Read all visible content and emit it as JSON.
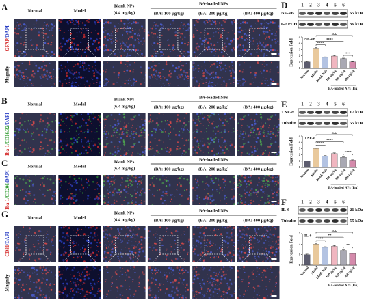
{
  "image_columns": {
    "normal": "Normal",
    "model": "Model",
    "blank": "Blank NPs",
    "blank_dose": "(6.4 mg/kg)",
    "ba_group": "BA-loaded NPs",
    "ba_doses": [
      "(BA: 100 μg/kg)",
      "(BA: 200 μg/kg)",
      "(BA: 400 μg/kg)"
    ]
  },
  "image_panels": [
    {
      "letter": "A",
      "stain": [
        {
          "text": "GFAP",
          "color": "#d42a2a"
        },
        {
          "text": "/DAPI",
          "color": "#2a3fc4"
        }
      ],
      "magnify": "Magnify"
    },
    {
      "letter": "B",
      "stain": [
        {
          "text": "Iba-1",
          "color": "#d42a2a"
        },
        {
          "text": "/CD16/32",
          "color": "#2f9a2f"
        },
        {
          "text": "/DAPI",
          "color": "#2a3fc4"
        }
      ]
    },
    {
      "letter": "C",
      "stain": [
        {
          "text": "Iba-1",
          "color": "#d42a2a"
        },
        {
          "text": "/CD206",
          "color": "#2f9a2f"
        },
        {
          "text": "/DAPI",
          "color": "#2a3fc4"
        }
      ]
    },
    {
      "letter": "G",
      "stain": [
        {
          "text": "CD31",
          "color": "#d42a2a"
        },
        {
          "text": "/DAPI",
          "color": "#2a3fc4"
        }
      ],
      "magnify": "Magnify"
    }
  ],
  "blot_panels": [
    {
      "letter": "D",
      "lanes": [
        1,
        2,
        3,
        4,
        5,
        6
      ],
      "blots": [
        {
          "protein": "NF-κB",
          "size": "65 kDa"
        },
        {
          "protein": "GAPDH",
          "size": "36 kDa"
        }
      ],
      "chart_data": {
        "type": "bar",
        "title": "NF-κB",
        "y_label": "Expression Fold",
        "categories": [
          "Normal",
          "Model",
          "Blank NPs",
          "100 μg/kg",
          "200 μg/kg",
          "400 μg/kg"
        ],
        "group_label": "BA-loaded NPs (BA)",
        "values": [
          1.0,
          3.2,
          1.75,
          1.95,
          1.55,
          1.0
        ],
        "errors": [
          0.08,
          0.12,
          0.08,
          0.1,
          0.08,
          0.06
        ],
        "colors": [
          "#5c5c6e",
          "#e9c99c",
          "#b3c3e2",
          "#f0b6c0",
          "#a9a9b3",
          "#d48aab"
        ],
        "ylim": [
          0,
          5
        ],
        "yticks": [
          0,
          1,
          2,
          3,
          4,
          5
        ],
        "significance": [
          "n.s.",
          "****",
          "****",
          "***"
        ]
      }
    },
    {
      "letter": "E",
      "lanes": [
        1,
        2,
        3,
        4,
        5,
        6
      ],
      "blots": [
        {
          "protein": "TNF-α",
          "size": "17 kDa"
        },
        {
          "protein": "Tubulin",
          "size": "55 kDa"
        }
      ],
      "chart_data": {
        "type": "bar",
        "title": "TNF-α",
        "y_label": "Expression Fold",
        "categories": [
          "Normal",
          "Model",
          "Blank NPs",
          "100 μg/kg",
          "200 μg/kg",
          "400 μg/kg"
        ],
        "group_label": "BA-loaded NPs (BA)",
        "values": [
          1.0,
          3.0,
          1.8,
          2.2,
          1.6,
          1.15
        ],
        "errors": [
          0.06,
          0.1,
          0.08,
          0.1,
          0.08,
          0.06
        ],
        "colors": [
          "#5c5c6e",
          "#e9c99c",
          "#b3c3e2",
          "#f0b6c0",
          "#a9a9b3",
          "#d48aab"
        ],
        "ylim": [
          0,
          5
        ],
        "yticks": [
          0,
          1,
          2,
          3,
          4,
          5
        ],
        "significance": [
          "n.s.",
          "****",
          "****",
          "****"
        ]
      }
    },
    {
      "letter": "F",
      "lanes": [
        1,
        2,
        3,
        4,
        5,
        6
      ],
      "blots": [
        {
          "protein": "IL-6",
          "size": "21 kDa"
        },
        {
          "protein": "Tubulin",
          "size": "55 kDa"
        }
      ],
      "chart_data": {
        "type": "bar",
        "title": "IL-6",
        "y_label": "Expression Fold",
        "categories": [
          "Normal",
          "Model",
          "Blank NPs",
          "100 μg/kg",
          "200 μg/kg",
          "400 μg/kg"
        ],
        "group_label": "BA-loaded NPs (BA)",
        "values": [
          1.0,
          2.0,
          1.7,
          1.8,
          1.4,
          1.1
        ],
        "errors": [
          0.05,
          0.08,
          0.06,
          0.07,
          0.06,
          0.05
        ],
        "colors": [
          "#5c5c6e",
          "#e9c99c",
          "#b3c3e2",
          "#f0b6c0",
          "#a9a9b3",
          "#d48aab"
        ],
        "ylim": [
          0,
          3
        ],
        "yticks": [
          0,
          1,
          2,
          3
        ],
        "significance": [
          "n.s.",
          "***",
          "**",
          "**"
        ]
      }
    }
  ]
}
